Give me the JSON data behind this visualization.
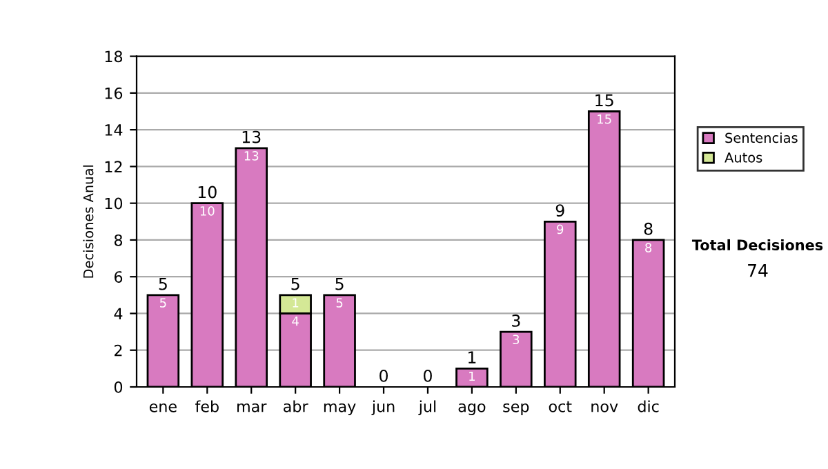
{
  "chart_data": {
    "type": "bar",
    "stacked": true,
    "ylabel": "Decisiones Anual",
    "categories": [
      "ene",
      "feb",
      "mar",
      "abr",
      "may",
      "jun",
      "jul",
      "ago",
      "sep",
      "oct",
      "nov",
      "dic"
    ],
    "series": [
      {
        "name": "Sentencias",
        "color": "#d87ac0",
        "values": [
          5,
          10,
          13,
          4,
          5,
          0,
          0,
          1,
          3,
          9,
          15,
          8
        ],
        "value_labels": [
          "5",
          "10",
          "13",
          "4",
          "5",
          null,
          null,
          "1",
          "3",
          "9",
          "15",
          "8"
        ]
      },
      {
        "name": "Autos",
        "color": "#d4e896",
        "values": [
          0,
          0,
          0,
          1,
          0,
          0,
          0,
          0,
          0,
          0,
          0,
          0
        ],
        "value_labels": [
          null,
          null,
          null,
          "1",
          null,
          null,
          null,
          null,
          null,
          null,
          null,
          null
        ]
      }
    ],
    "totals": [
      "5",
      "10",
      "13",
      "5",
      "5",
      "0",
      "0",
      "1",
      "3",
      "9",
      "15",
      "8"
    ],
    "ylim": [
      0,
      18
    ],
    "yticks": [
      0,
      2,
      4,
      6,
      8,
      10,
      12,
      14,
      16,
      18
    ],
    "grid": "y",
    "legend": "right",
    "annotations": [
      "Total Decisiones",
      "74"
    ]
  }
}
